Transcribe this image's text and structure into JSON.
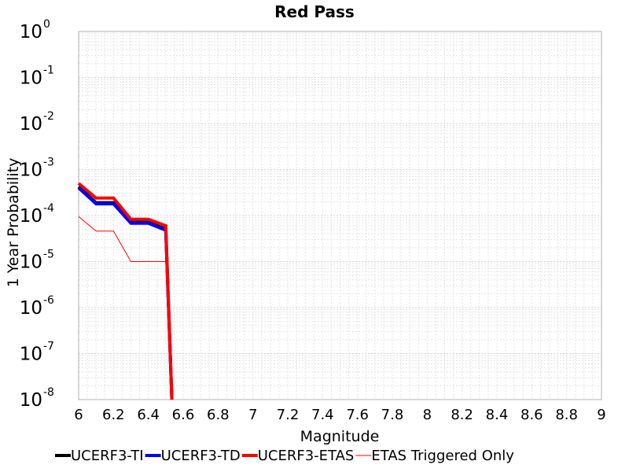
{
  "chart_data": {
    "type": "line",
    "title": "Red Pass",
    "xlabel": "Magnitude",
    "ylabel": "1 Year Probability",
    "xlim": [
      6,
      9
    ],
    "ylim": [
      1e-08,
      1
    ],
    "yscale": "log",
    "grid": true,
    "legend_position": "bottom",
    "x_ticks": [
      "6",
      "6.2",
      "6.4",
      "6.6",
      "6.8",
      "7",
      "7.2",
      "7.4",
      "7.6",
      "7.8",
      "8",
      "8.2",
      "8.4",
      "8.6",
      "8.8",
      "9"
    ],
    "y_ticks": [
      {
        "base": "10",
        "exp": "0"
      },
      {
        "base": "10",
        "exp": "-1"
      },
      {
        "base": "10",
        "exp": "-2"
      },
      {
        "base": "10",
        "exp": "-3"
      },
      {
        "base": "10",
        "exp": "-4"
      },
      {
        "base": "10",
        "exp": "-5"
      },
      {
        "base": "10",
        "exp": "-6"
      },
      {
        "base": "10",
        "exp": "-7"
      },
      {
        "base": "10",
        "exp": "-8"
      }
    ],
    "series": [
      {
        "name": "UCERF3-TI",
        "color": "#000000",
        "line_width": 4,
        "x": [
          6.0,
          6.1,
          6.2,
          6.3,
          6.4,
          6.5,
          6.535
        ],
        "y": [
          0.00042,
          0.00019,
          0.00019,
          7.2e-05,
          7.2e-05,
          5e-05,
          1e-08
        ]
      },
      {
        "name": "UCERF3-TD",
        "color": "#0000ff",
        "line_width": 4,
        "x": [
          6.0,
          6.1,
          6.2,
          6.3,
          6.4,
          6.5,
          6.535
        ],
        "y": [
          0.0004,
          0.00018,
          0.00018,
          6.8e-05,
          6.8e-05,
          4.8e-05,
          1e-08
        ]
      },
      {
        "name": "UCERF3-ETAS",
        "color": "#ff0000",
        "line_width": 4,
        "x": [
          6.0,
          6.1,
          6.2,
          6.3,
          6.4,
          6.5,
          6.535
        ],
        "y": [
          0.0005,
          0.00024,
          0.00024,
          8.3e-05,
          8.3e-05,
          6e-05,
          1e-08
        ]
      },
      {
        "name": "ETAS Triggered Only",
        "color": "#ff0000",
        "line_width": 1,
        "x": [
          6.0,
          6.1,
          6.2,
          6.3,
          6.4,
          6.5,
          6.535
        ],
        "y": [
          9.5e-05,
          4.6e-05,
          4.6e-05,
          1e-05,
          1e-05,
          1e-05,
          1e-08
        ]
      }
    ]
  }
}
